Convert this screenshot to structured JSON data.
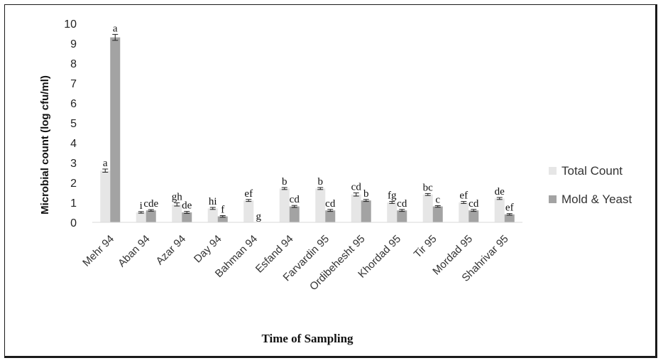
{
  "chart_data": {
    "type": "bar",
    "title": "",
    "xlabel": "Time of Sampling",
    "ylabel": "Microbial count (log cfu/ml)",
    "ylim": [
      0,
      10
    ],
    "yticks": [
      "0",
      "1",
      "2",
      "3",
      "4",
      "5",
      "6",
      "7",
      "8",
      "9",
      "10"
    ],
    "categories": [
      "Mehr 94",
      "Aban 94",
      "Azar 94",
      "Day 94",
      "Bahman 94",
      "Esfand 94",
      "Farvardin 95",
      "Ordibehesht 95",
      "Khordad 95",
      "Tir 95",
      "Mordad 95",
      "Shahrivar 95"
    ],
    "series": [
      {
        "name": "Total Count",
        "color": "#e6e6e6",
        "values": [
          2.6,
          0.5,
          0.9,
          0.7,
          1.1,
          1.7,
          1.7,
          1.4,
          1.0,
          1.4,
          1.0,
          1.2
        ],
        "errors": [
          0.08,
          0.04,
          0.08,
          0.05,
          0.05,
          0.05,
          0.05,
          0.08,
          0.05,
          0.05,
          0.05,
          0.05
        ],
        "labels": [
          "a",
          "i",
          "gh",
          "hi",
          "ef",
          "b",
          "b",
          "cd",
          "fg",
          "bc",
          "ef",
          "de"
        ]
      },
      {
        "name": "Mold & Yeast",
        "color": "#a3a3a3",
        "values": [
          9.3,
          0.6,
          0.5,
          0.3,
          0.0,
          0.8,
          0.6,
          1.1,
          0.6,
          0.8,
          0.6,
          0.4
        ],
        "errors": [
          0.15,
          0.04,
          0.05,
          0.04,
          0.0,
          0.05,
          0.05,
          0.05,
          0.05,
          0.04,
          0.05,
          0.04
        ],
        "labels": [
          "a",
          "cde",
          "de",
          "f",
          "g",
          "cd",
          "cd",
          "b",
          "cd",
          "c",
          "cd",
          "ef"
        ]
      }
    ],
    "legend": {
      "position": "right"
    },
    "grid": false
  }
}
